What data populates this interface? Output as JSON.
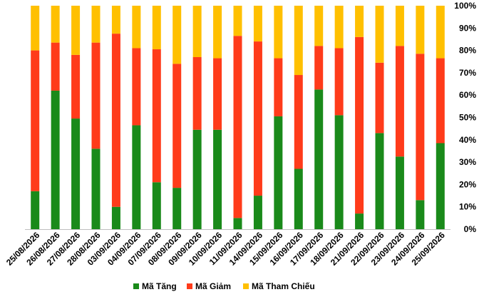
{
  "chart_data": {
    "type": "bar",
    "stacked": true,
    "percent_stacked": true,
    "title": "",
    "xlabel": "",
    "ylabel": "",
    "ylim": [
      0,
      100
    ],
    "y_ticks": [
      "0%",
      "10%",
      "20%",
      "30%",
      "40%",
      "50%",
      "60%",
      "70%",
      "80%",
      "90%",
      "100%"
    ],
    "y_axis_side": "right",
    "grid": false,
    "legend_position": "bottom",
    "categories": [
      "25/08/2026",
      "26/08/2026",
      "27/08/2026",
      "28/08/2026",
      "03/09/2026",
      "04/09/2026",
      "07/09/2026",
      "08/09/2026",
      "09/09/2026",
      "10/09/2026",
      "11/09/2026",
      "14/09/2026",
      "15/09/2026",
      "16/09/2026",
      "17/09/2026",
      "18/09/2026",
      "21/09/2026",
      "22/09/2026",
      "23/09/2026",
      "24/09/2026",
      "25/09/2026"
    ],
    "series": [
      {
        "name": "Mã Tăng",
        "color": "#1a8a1a",
        "values": [
          17,
          62,
          49.5,
          36,
          10,
          46.5,
          21,
          18.5,
          44.5,
          44.5,
          5,
          15,
          50.5,
          27,
          62.5,
          51,
          7,
          43,
          32.5,
          13,
          38.5
        ]
      },
      {
        "name": "Mã Giảm",
        "color": "#ff3b1a",
        "values": [
          63,
          21.5,
          28.5,
          47.5,
          77.5,
          34.5,
          59.5,
          55.5,
          32.5,
          32,
          81.5,
          69,
          26,
          42,
          19.5,
          30,
          79,
          31.5,
          49.5,
          65.5,
          38
        ]
      },
      {
        "name": "Mã Tham Chiếu",
        "color": "#ffc000",
        "values": [
          20,
          16.5,
          22,
          16.5,
          12.5,
          19,
          19.5,
          26,
          23,
          23.5,
          13.5,
          16,
          23.5,
          31,
          18,
          19,
          14,
          25.5,
          18,
          21.5,
          23.5
        ]
      }
    ]
  }
}
